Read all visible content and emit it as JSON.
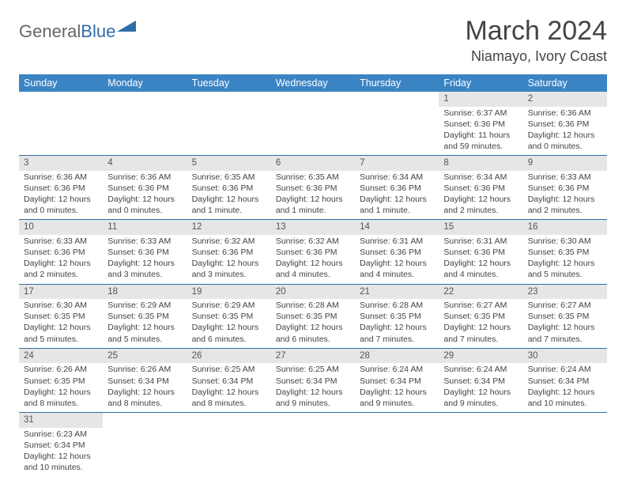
{
  "brand": {
    "part1": "General",
    "part2": "Blue"
  },
  "title": "March 2024",
  "location": "Niamayo, Ivory Coast",
  "colors": {
    "header_bg": "#3b84c4",
    "header_text": "#ffffff",
    "row_divider": "#2f6ea8",
    "daynum_bg": "#e6e6e6",
    "brand_blue": "#2f6ea8"
  },
  "day_labels": [
    "Sunday",
    "Monday",
    "Tuesday",
    "Wednesday",
    "Thursday",
    "Friday",
    "Saturday"
  ],
  "weeks": [
    [
      {
        "n": "",
        "sr": "",
        "ss": "",
        "dl": ""
      },
      {
        "n": "",
        "sr": "",
        "ss": "",
        "dl": ""
      },
      {
        "n": "",
        "sr": "",
        "ss": "",
        "dl": ""
      },
      {
        "n": "",
        "sr": "",
        "ss": "",
        "dl": ""
      },
      {
        "n": "",
        "sr": "",
        "ss": "",
        "dl": ""
      },
      {
        "n": "1",
        "sr": "Sunrise: 6:37 AM",
        "ss": "Sunset: 6:36 PM",
        "dl": "Daylight: 11 hours and 59 minutes."
      },
      {
        "n": "2",
        "sr": "Sunrise: 6:36 AM",
        "ss": "Sunset: 6:36 PM",
        "dl": "Daylight: 12 hours and 0 minutes."
      }
    ],
    [
      {
        "n": "3",
        "sr": "Sunrise: 6:36 AM",
        "ss": "Sunset: 6:36 PM",
        "dl": "Daylight: 12 hours and 0 minutes."
      },
      {
        "n": "4",
        "sr": "Sunrise: 6:36 AM",
        "ss": "Sunset: 6:36 PM",
        "dl": "Daylight: 12 hours and 0 minutes."
      },
      {
        "n": "5",
        "sr": "Sunrise: 6:35 AM",
        "ss": "Sunset: 6:36 PM",
        "dl": "Daylight: 12 hours and 1 minute."
      },
      {
        "n": "6",
        "sr": "Sunrise: 6:35 AM",
        "ss": "Sunset: 6:36 PM",
        "dl": "Daylight: 12 hours and 1 minute."
      },
      {
        "n": "7",
        "sr": "Sunrise: 6:34 AM",
        "ss": "Sunset: 6:36 PM",
        "dl": "Daylight: 12 hours and 1 minute."
      },
      {
        "n": "8",
        "sr": "Sunrise: 6:34 AM",
        "ss": "Sunset: 6:36 PM",
        "dl": "Daylight: 12 hours and 2 minutes."
      },
      {
        "n": "9",
        "sr": "Sunrise: 6:33 AM",
        "ss": "Sunset: 6:36 PM",
        "dl": "Daylight: 12 hours and 2 minutes."
      }
    ],
    [
      {
        "n": "10",
        "sr": "Sunrise: 6:33 AM",
        "ss": "Sunset: 6:36 PM",
        "dl": "Daylight: 12 hours and 2 minutes."
      },
      {
        "n": "11",
        "sr": "Sunrise: 6:33 AM",
        "ss": "Sunset: 6:36 PM",
        "dl": "Daylight: 12 hours and 3 minutes."
      },
      {
        "n": "12",
        "sr": "Sunrise: 6:32 AM",
        "ss": "Sunset: 6:36 PM",
        "dl": "Daylight: 12 hours and 3 minutes."
      },
      {
        "n": "13",
        "sr": "Sunrise: 6:32 AM",
        "ss": "Sunset: 6:36 PM",
        "dl": "Daylight: 12 hours and 4 minutes."
      },
      {
        "n": "14",
        "sr": "Sunrise: 6:31 AM",
        "ss": "Sunset: 6:36 PM",
        "dl": "Daylight: 12 hours and 4 minutes."
      },
      {
        "n": "15",
        "sr": "Sunrise: 6:31 AM",
        "ss": "Sunset: 6:36 PM",
        "dl": "Daylight: 12 hours and 4 minutes."
      },
      {
        "n": "16",
        "sr": "Sunrise: 6:30 AM",
        "ss": "Sunset: 6:35 PM",
        "dl": "Daylight: 12 hours and 5 minutes."
      }
    ],
    [
      {
        "n": "17",
        "sr": "Sunrise: 6:30 AM",
        "ss": "Sunset: 6:35 PM",
        "dl": "Daylight: 12 hours and 5 minutes."
      },
      {
        "n": "18",
        "sr": "Sunrise: 6:29 AM",
        "ss": "Sunset: 6:35 PM",
        "dl": "Daylight: 12 hours and 5 minutes."
      },
      {
        "n": "19",
        "sr": "Sunrise: 6:29 AM",
        "ss": "Sunset: 6:35 PM",
        "dl": "Daylight: 12 hours and 6 minutes."
      },
      {
        "n": "20",
        "sr": "Sunrise: 6:28 AM",
        "ss": "Sunset: 6:35 PM",
        "dl": "Daylight: 12 hours and 6 minutes."
      },
      {
        "n": "21",
        "sr": "Sunrise: 6:28 AM",
        "ss": "Sunset: 6:35 PM",
        "dl": "Daylight: 12 hours and 7 minutes."
      },
      {
        "n": "22",
        "sr": "Sunrise: 6:27 AM",
        "ss": "Sunset: 6:35 PM",
        "dl": "Daylight: 12 hours and 7 minutes."
      },
      {
        "n": "23",
        "sr": "Sunrise: 6:27 AM",
        "ss": "Sunset: 6:35 PM",
        "dl": "Daylight: 12 hours and 7 minutes."
      }
    ],
    [
      {
        "n": "24",
        "sr": "Sunrise: 6:26 AM",
        "ss": "Sunset: 6:35 PM",
        "dl": "Daylight: 12 hours and 8 minutes."
      },
      {
        "n": "25",
        "sr": "Sunrise: 6:26 AM",
        "ss": "Sunset: 6:34 PM",
        "dl": "Daylight: 12 hours and 8 minutes."
      },
      {
        "n": "26",
        "sr": "Sunrise: 6:25 AM",
        "ss": "Sunset: 6:34 PM",
        "dl": "Daylight: 12 hours and 8 minutes."
      },
      {
        "n": "27",
        "sr": "Sunrise: 6:25 AM",
        "ss": "Sunset: 6:34 PM",
        "dl": "Daylight: 12 hours and 9 minutes."
      },
      {
        "n": "28",
        "sr": "Sunrise: 6:24 AM",
        "ss": "Sunset: 6:34 PM",
        "dl": "Daylight: 12 hours and 9 minutes."
      },
      {
        "n": "29",
        "sr": "Sunrise: 6:24 AM",
        "ss": "Sunset: 6:34 PM",
        "dl": "Daylight: 12 hours and 9 minutes."
      },
      {
        "n": "30",
        "sr": "Sunrise: 6:24 AM",
        "ss": "Sunset: 6:34 PM",
        "dl": "Daylight: 12 hours and 10 minutes."
      }
    ],
    [
      {
        "n": "31",
        "sr": "Sunrise: 6:23 AM",
        "ss": "Sunset: 6:34 PM",
        "dl": "Daylight: 12 hours and 10 minutes."
      },
      {
        "n": "",
        "sr": "",
        "ss": "",
        "dl": ""
      },
      {
        "n": "",
        "sr": "",
        "ss": "",
        "dl": ""
      },
      {
        "n": "",
        "sr": "",
        "ss": "",
        "dl": ""
      },
      {
        "n": "",
        "sr": "",
        "ss": "",
        "dl": ""
      },
      {
        "n": "",
        "sr": "",
        "ss": "",
        "dl": ""
      },
      {
        "n": "",
        "sr": "",
        "ss": "",
        "dl": ""
      }
    ]
  ]
}
